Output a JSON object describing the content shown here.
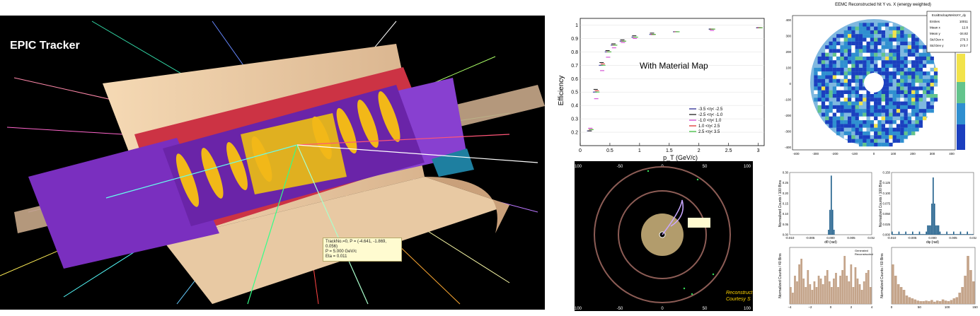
{
  "detector": {
    "title": "EPIC Tracker",
    "tooltip_lines": [
      "TrackNo.=0, P = (-4.641, -1.869, 0.056)",
      "P  = 5.000 GeV/c",
      "Eta = 0.011"
    ]
  },
  "efficiency": {
    "chart_data": {
      "type": "scatter",
      "ylabel": "Efficiency",
      "xlabel": "p_T (GeV/c)",
      "annotation": "With Material Map",
      "xlim": [
        0,
        3.1
      ],
      "ylim": [
        0.1,
        1.05
      ],
      "x_ticks": [
        "0",
        "0.5",
        "1",
        "1.5",
        "2",
        "2.5",
        "3"
      ],
      "y_ticks": [
        "0.2",
        "0.3",
        "0.4",
        "0.5",
        "0.6",
        "0.7",
        "0.8",
        "0.9",
        "1"
      ],
      "series": [
        {
          "name": "-3.5 <η< -2.5",
          "color": "#1a1a8a",
          "x": [
            0.15,
            0.25,
            0.35,
            0.45,
            0.55,
            0.7,
            0.9,
            1.2,
            1.6,
            2.2,
            3.0
          ],
          "y": [
            0.21,
            0.5,
            0.7,
            0.8,
            0.85,
            0.88,
            0.91,
            0.93,
            0.95,
            0.97,
            0.98
          ]
        },
        {
          "name": "-2.5 <η< -1.0",
          "color": "#111111",
          "x": [
            0.15,
            0.25,
            0.35,
            0.45,
            0.55,
            0.7,
            0.9,
            1.2,
            1.6,
            2.2,
            3.0
          ],
          "y": [
            0.21,
            0.52,
            0.72,
            0.81,
            0.86,
            0.89,
            0.92,
            0.94,
            0.95,
            0.97,
            0.98
          ]
        },
        {
          "name": "-1.0 <η< 1.0",
          "color": "#cc33cc",
          "x": [
            0.15,
            0.25,
            0.35,
            0.45,
            0.55,
            0.7,
            0.9,
            1.2,
            1.6,
            2.2,
            3.0
          ],
          "y": [
            0.23,
            0.45,
            0.66,
            0.76,
            0.83,
            0.87,
            0.9,
            0.93,
            0.95,
            0.96,
            0.98
          ]
        },
        {
          "name": "1.0 <η< 2.5",
          "color": "#dd2222",
          "x": [
            0.15,
            0.25,
            0.35,
            0.45,
            0.55,
            0.7,
            0.9,
            1.2,
            1.6,
            2.2,
            3.0
          ],
          "y": [
            0.22,
            0.51,
            0.71,
            0.8,
            0.85,
            0.88,
            0.91,
            0.93,
            0.95,
            0.97,
            0.98
          ]
        },
        {
          "name": "2.5 <η< 3.5",
          "color": "#33bb33",
          "x": [
            0.15,
            0.25,
            0.35,
            0.45,
            0.55,
            0.7,
            0.9,
            1.2,
            1.6,
            2.2,
            3.0
          ],
          "y": [
            0.22,
            0.5,
            0.7,
            0.8,
            0.85,
            0.88,
            0.91,
            0.93,
            0.95,
            0.97,
            0.98
          ]
        }
      ]
    }
  },
  "trackview": {
    "x_ticks": [
      "-100",
      "-50",
      "0",
      "50",
      "100"
    ],
    "caption_lines": [
      "Reconstruct",
      "Courtesy S"
    ]
  },
  "eemc": {
    "title": "EEMC Reconstructed hit Y vs. X (energy weighted)",
    "stats_header": "EcalEndcapNHitsXY_dy",
    "stats_rows": [
      [
        "Entries",
        "10011"
      ],
      [
        "Mean x",
        "12.8"
      ],
      [
        "Mean y",
        "-34.82"
      ],
      [
        "Std Dev x",
        "276.3"
      ],
      [
        "Std Dev y",
        "273.7"
      ]
    ],
    "x_ticks": [
      "-400",
      "-300",
      "-200",
      "-100",
      "0",
      "100",
      "200",
      "300",
      "400"
    ],
    "y_ticks": [
      "400",
      "300",
      "200",
      "100",
      "0",
      "-100",
      "-200",
      "-300",
      "-400"
    ]
  },
  "hist_dtheta": {
    "ylabel": "Normalized Counts / 100 Bins",
    "xlabel": "dθ (rad)",
    "x_ticks": [
      "-0.010",
      "-0.005",
      "0.000",
      "0.005",
      "0.010"
    ],
    "y_ticks": [
      "0.00",
      "0.05",
      "0.10",
      "0.15",
      "0.20",
      "0.25",
      "0.30"
    ]
  },
  "hist_dphi": {
    "ylabel": "Normalized Counts / 100 Bins",
    "xlabel": "dφ (rad)",
    "x_ticks": [
      "-0.010",
      "-0.005",
      "0.000",
      "0.005",
      "0.010"
    ],
    "y_ticks": [
      "0.000",
      "0.025",
      "0.050",
      "0.075",
      "0.100",
      "0.125",
      "0.150"
    ]
  },
  "hist_eta": {
    "ylabel": "Normalized Counts / 40 Bins",
    "x_ticks": [
      "−4",
      "−2",
      "0",
      "2",
      "4"
    ],
    "legend": [
      "Generated",
      "Reconstructed"
    ]
  },
  "hist_phi": {
    "ylabel": "Normalized Counts / 60 Bins",
    "x_ticks": [
      "0",
      "50",
      "100",
      "150"
    ]
  }
}
